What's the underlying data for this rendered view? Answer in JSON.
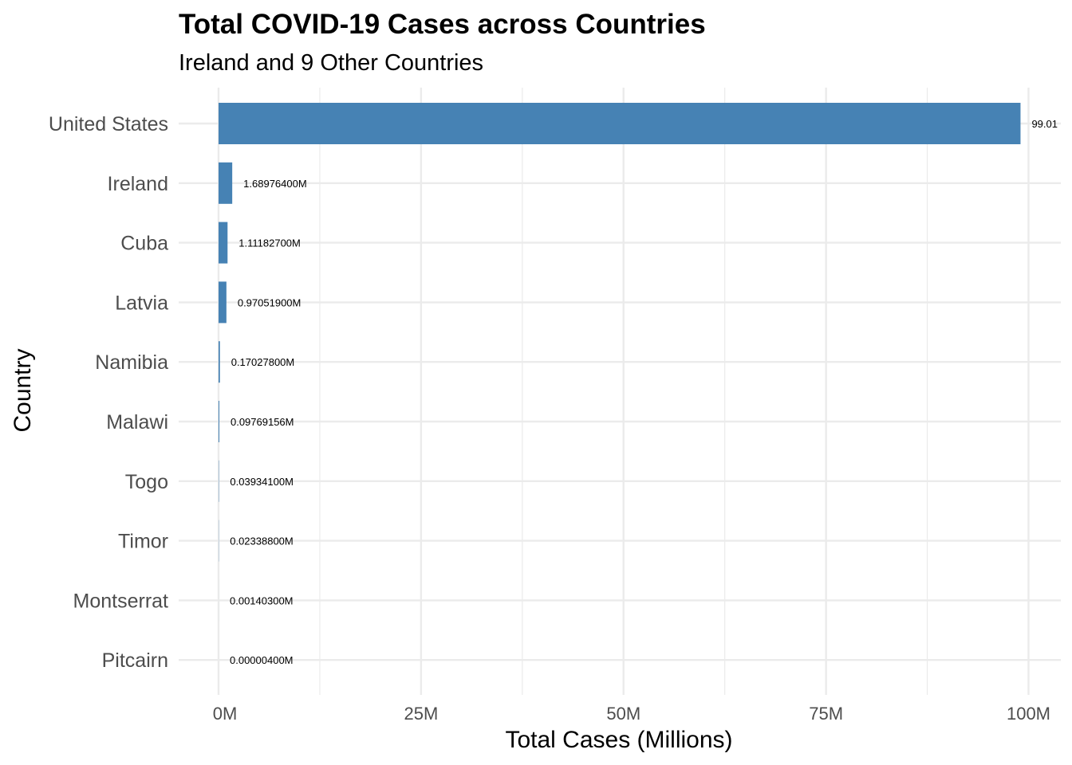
{
  "chart_data": {
    "type": "bar",
    "orientation": "horizontal",
    "title": "Total COVID-19 Cases across Countries",
    "subtitle": "Ireland and 9 Other Countries",
    "xlabel": "Total Cases (Millions)",
    "ylabel": "Country",
    "xlim": [
      0,
      103
    ],
    "x_ticks": [
      0,
      25,
      50,
      75,
      100
    ],
    "x_tick_labels": [
      "0M",
      "25M",
      "50M",
      "75M",
      "100M"
    ],
    "grid": true,
    "bar_color": "#4682b4",
    "categories": [
      "United States",
      "Ireland",
      "Cuba",
      "Latvia",
      "Namibia",
      "Malawi",
      "Togo",
      "Timor",
      "Montserrat",
      "Pitcairn"
    ],
    "values": [
      99.01,
      1.689764,
      1.111827,
      0.970519,
      0.170278,
      0.09769156,
      0.039341,
      0.023388,
      0.001403,
      4e-06
    ],
    "data_labels": [
      "99.01",
      "1.68976400M",
      "1.11182700M",
      "0.97051900M",
      "0.17027800M",
      "0.09769156M",
      "0.03934100M",
      "0.02338800M",
      "0.00140300M",
      "0.00000400M"
    ]
  }
}
